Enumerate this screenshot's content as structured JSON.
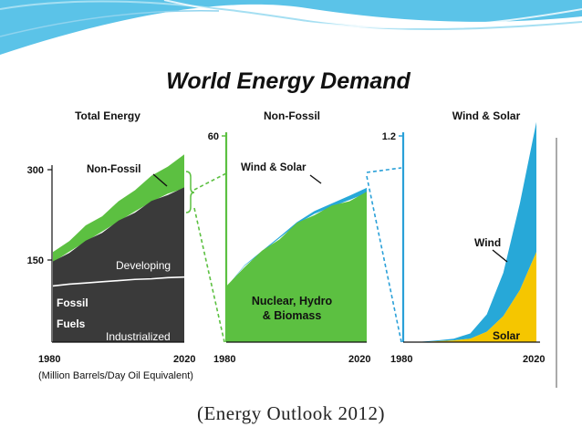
{
  "caption": "(Energy Outlook 2012)",
  "colors": {
    "green": "#5cc041",
    "dark": "#3a3a3a",
    "blue": "#27a8d8",
    "yellow": "#f5c600",
    "axis_blue": "#2aa0d8",
    "banner": "#5bc3e8"
  },
  "chart_data": [
    {
      "type": "area",
      "title": "World Energy Demand",
      "panel_title": "Total Energy",
      "x": [
        1980,
        1985,
        1990,
        1995,
        2000,
        2005,
        2010,
        2015,
        2020
      ],
      "xticks": [
        "1980",
        "2020"
      ],
      "yticks": [
        "300",
        "150"
      ],
      "ylim": [
        0,
        330
      ],
      "xlabel": "(Million Barrels/Day Oil Equivalent)",
      "series": [
        {
          "name": "Industrialized",
          "values": [
            95,
            98,
            100,
            102,
            104,
            106,
            107,
            109,
            110
          ]
        },
        {
          "name": "Developing",
          "values": [
            40,
            55,
            70,
            85,
            100,
            115,
            130,
            142,
            150
          ]
        },
        {
          "name": "Non-Fossil",
          "values": [
            15,
            20,
            25,
            28,
            32,
            38,
            42,
            48,
            55
          ]
        }
      ],
      "labels": {
        "nonfossil": "Non-Fossil",
        "developing": "Developing",
        "fossil": "Fossil",
        "fuels": "Fuels",
        "industrialized": "Industrialized"
      }
    },
    {
      "type": "area",
      "panel_title": "Non-Fossil",
      "x": [
        1980,
        1985,
        1990,
        1995,
        2000,
        2005,
        2010,
        2015,
        2020
      ],
      "xticks": [
        "1980",
        "2020"
      ],
      "yticks": [
        "60"
      ],
      "ylim": [
        0,
        60
      ],
      "series": [
        {
          "name": "Nuclear, Hydro & Biomass",
          "values": [
            16,
            22,
            26,
            30,
            34,
            37,
            39,
            41,
            43
          ]
        },
        {
          "name": "Wind & Solar",
          "values": [
            0.1,
            0.2,
            0.3,
            0.4,
            0.6,
            0.8,
            1.0,
            1.2,
            1.5
          ]
        }
      ],
      "labels": {
        "windsolar": "Wind & Solar",
        "nuclear1": "Nuclear, Hydro",
        "nuclear2": "& Biomass"
      }
    },
    {
      "type": "area",
      "panel_title": "Wind & Solar",
      "x": [
        1980,
        1985,
        1990,
        1995,
        2000,
        2005,
        2010,
        2015,
        2020
      ],
      "xticks": [
        "1980",
        "2020"
      ],
      "yticks": [
        "1.2"
      ],
      "ylim": [
        0,
        1.2
      ],
      "series": [
        {
          "name": "Solar",
          "values": [
            0.0,
            0.0,
            0.005,
            0.01,
            0.02,
            0.06,
            0.15,
            0.3,
            0.52
          ]
        },
        {
          "name": "Wind",
          "values": [
            0.0,
            0.002,
            0.005,
            0.01,
            0.03,
            0.1,
            0.25,
            0.5,
            0.75
          ]
        }
      ],
      "labels": {
        "wind": "Wind",
        "solar": "Solar"
      }
    }
  ]
}
